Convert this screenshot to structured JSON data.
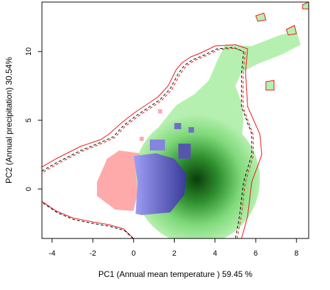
{
  "chart_data": {
    "type": "heatmap",
    "title": "",
    "xlabel": "PC1 (Annual mean temperature ) 59.45 %",
    "ylabel": "PC2 (Annual precipitation) 30.54%",
    "xlim": [
      -4.5,
      8.6
    ],
    "ylim": [
      -3.6,
      13.6
    ],
    "xticks": [
      -4,
      -2,
      0,
      2,
      4,
      6,
      8
    ],
    "yticks": [
      0,
      5,
      10
    ],
    "grid": false,
    "legend": "none",
    "colors": {
      "density_high": "#0a3d0a",
      "density_low": "#b6f0b0",
      "red_region": "#ffaaaa",
      "blue_region": "#9f9ff6",
      "blue_dark": "#3a3a9a",
      "envelope": "#ee1111",
      "envelope_dashed": "#000000"
    },
    "density_peak": [
      3.1,
      0.7
    ],
    "regions": {
      "green": [
        [
          4.5,
          10.5
        ],
        [
          5.8,
          10.4
        ],
        [
          6.5,
          10.8
        ],
        [
          7.2,
          11.2
        ],
        [
          8.0,
          11.5
        ],
        [
          8.2,
          10.5
        ],
        [
          7.3,
          9.8
        ],
        [
          6.1,
          9.1
        ],
        [
          5.3,
          8.5
        ],
        [
          5.0,
          7.5
        ],
        [
          5.3,
          6.3
        ],
        [
          5.4,
          5.0
        ],
        [
          5.3,
          3.5
        ],
        [
          5.4,
          1.5
        ],
        [
          5.3,
          -1.0
        ],
        [
          4.9,
          -2.8
        ],
        [
          3.4,
          -3.3
        ],
        [
          1.6,
          -3.2
        ],
        [
          1.2,
          -2.2
        ],
        [
          0.6,
          -1.2
        ],
        [
          0.3,
          0.5
        ],
        [
          0.5,
          2.2
        ],
        [
          0.9,
          3.9
        ],
        [
          1.5,
          5.0
        ],
        [
          2.1,
          6.1
        ],
        [
          3.0,
          6.9
        ],
        [
          3.7,
          7.9
        ],
        [
          4.1,
          9.3
        ]
      ],
      "red": [
        [
          -1.8,
          0.5
        ],
        [
          -1.3,
          2.2
        ],
        [
          -0.7,
          2.8
        ],
        [
          0.3,
          2.6
        ],
        [
          0.1,
          1.3
        ],
        [
          0.2,
          -0.3
        ],
        [
          0.0,
          -1.6
        ],
        [
          -0.9,
          -1.5
        ],
        [
          -1.8,
          -0.5
        ]
      ],
      "blue": [
        [
          0.0,
          2.4
        ],
        [
          0.2,
          0.5
        ],
        [
          0.1,
          -1.8
        ],
        [
          0.4,
          -1.9
        ],
        [
          1.8,
          -1.7
        ],
        [
          2.5,
          -0.4
        ],
        [
          2.6,
          1.1
        ],
        [
          2.0,
          2.2
        ],
        [
          1.1,
          2.6
        ]
      ],
      "red_contour": [
        [
          -4.5,
          1.6
        ],
        [
          -3.8,
          2.2
        ],
        [
          -2.6,
          3.1
        ],
        [
          -1.6,
          3.6
        ],
        [
          -1.2,
          4.0
        ],
        [
          -0.6,
          4.8
        ],
        [
          0.0,
          5.5
        ],
        [
          0.6,
          6.1
        ],
        [
          1.2,
          6.7
        ],
        [
          1.7,
          7.5
        ],
        [
          2.1,
          8.7
        ],
        [
          2.4,
          9.2
        ],
        [
          2.8,
          9.6
        ],
        [
          3.3,
          9.9
        ],
        [
          4.0,
          10.4
        ],
        [
          5.0,
          10.5
        ],
        [
          5.6,
          10.2
        ],
        [
          5.5,
          8.5
        ],
        [
          5.6,
          6.0
        ],
        [
          6.2,
          4.0
        ],
        [
          6.3,
          2.5
        ],
        [
          5.8,
          0.5
        ],
        [
          5.6,
          -2.0
        ],
        [
          5.3,
          -3.6
        ]
      ],
      "dashed_contour": [
        [
          -4.5,
          1.3
        ],
        [
          -3.8,
          1.9
        ],
        [
          -2.6,
          2.8
        ],
        [
          -1.6,
          3.4
        ],
        [
          -1.0,
          3.8
        ],
        [
          -0.5,
          4.6
        ],
        [
          0.1,
          5.3
        ],
        [
          0.7,
          5.9
        ],
        [
          1.3,
          6.5
        ],
        [
          1.8,
          7.3
        ],
        [
          2.2,
          8.4
        ],
        [
          2.5,
          9.0
        ],
        [
          2.9,
          9.4
        ],
        [
          3.4,
          9.7
        ],
        [
          4.1,
          10.2
        ],
        [
          4.9,
          10.3
        ],
        [
          5.4,
          10.0
        ],
        [
          5.3,
          8.4
        ],
        [
          5.3,
          6.0
        ],
        [
          5.8,
          4.0
        ],
        [
          5.8,
          2.5
        ],
        [
          5.4,
          0.5
        ],
        [
          5.2,
          -2.0
        ],
        [
          5.0,
          -3.6
        ]
      ],
      "bottom_contour": [
        [
          -4.5,
          -0.9
        ],
        [
          -3.8,
          -1.6
        ],
        [
          -3.0,
          -2.1
        ],
        [
          -2.0,
          -2.4
        ],
        [
          -1.2,
          -2.6
        ],
        [
          -0.5,
          -2.9
        ],
        [
          0.0,
          -3.6
        ]
      ],
      "islands": [
        [
          [
            6.0,
            12.6
          ],
          [
            6.4,
            12.8
          ],
          [
            6.5,
            12.3
          ],
          [
            6.1,
            12.2
          ]
        ],
        [
          [
            7.5,
            11.6
          ],
          [
            7.9,
            11.9
          ],
          [
            8.0,
            11.3
          ],
          [
            7.6,
            11.2
          ]
        ],
        [
          [
            8.3,
            13.4
          ],
          [
            8.6,
            13.6
          ],
          [
            8.6,
            13.1
          ],
          [
            8.3,
            13.1
          ]
        ],
        [
          [
            6.5,
            7.8
          ],
          [
            6.9,
            7.9
          ],
          [
            6.9,
            7.2
          ],
          [
            6.5,
            7.2
          ]
        ]
      ]
    }
  }
}
